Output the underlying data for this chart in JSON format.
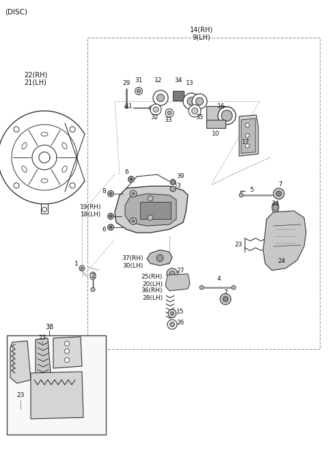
{
  "bg_color": "#ffffff",
  "line_color": "#333333",
  "text_color": "#111111",
  "fig_width": 4.8,
  "fig_height": 6.56,
  "dpi": 100,
  "labels": {
    "disc_title": "(DISC)",
    "14rh_9lh": "14(RH)\n9(LH)",
    "22rh_21lh": "22(RH)\n21(LH)",
    "38": "38",
    "1": "1",
    "2": "2",
    "3": "3",
    "4": "4",
    "5": "5",
    "6": "6",
    "7": "7",
    "8": "8",
    "10": "10",
    "11": "11",
    "12": "12",
    "13": "13",
    "15": "15",
    "16": "16",
    "17": "17",
    "19rh_18lh": "19(RH)\n18(LH)",
    "20lh_25rh": "25(RH)\n20(LH)",
    "23": "23",
    "24": "24",
    "26": "26",
    "27": "27",
    "29": "29",
    "30lh_37rh": "37(RH)\n30(LH)",
    "31": "31",
    "32": "32",
    "33": "33",
    "34": "34",
    "35": "35",
    "36rh_28lh": "36(RH)\n28(LH)",
    "39": "39"
  }
}
